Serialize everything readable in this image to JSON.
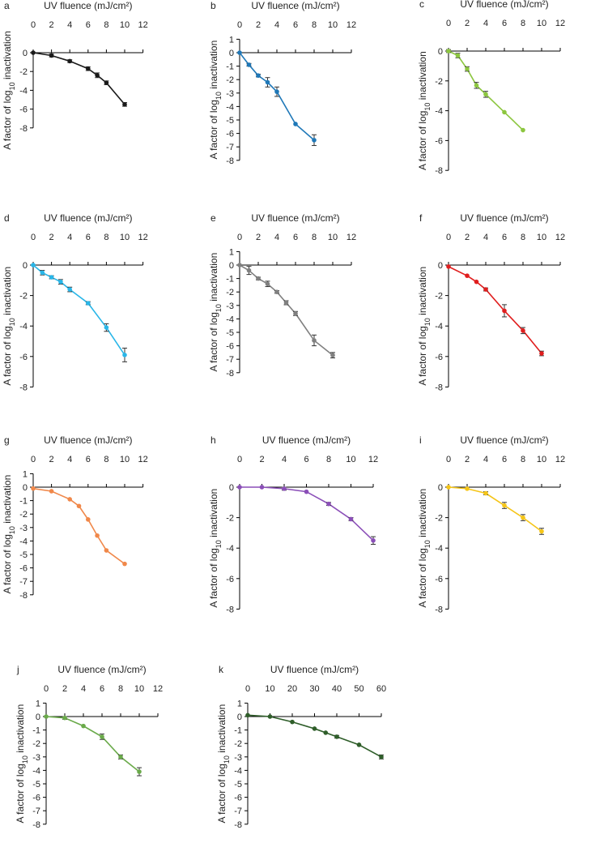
{
  "chart_data": [
    {
      "panel": "a",
      "type": "line",
      "color": "#1a1a1a",
      "title": "UV fluence (mJ/cm²)",
      "xlabel": "UV fluence (mJ/cm²)",
      "ylabel": "A factor of log10 inactivation",
      "xlim": [
        0,
        12
      ],
      "xticks": [
        0,
        2,
        4,
        6,
        8,
        10,
        12
      ],
      "ylim": [
        -8,
        0
      ],
      "yticks": [
        0,
        -2,
        -4,
        -6,
        -8
      ],
      "x": [
        0,
        2,
        4,
        6,
        7,
        8,
        10
      ],
      "y": [
        0,
        -0.3,
        -0.9,
        -1.7,
        -2.4,
        -3.2,
        -5.5
      ],
      "err": [
        0.05,
        0.15,
        0.15,
        0.2,
        0.25,
        0.2,
        0.2
      ]
    },
    {
      "panel": "b",
      "type": "line",
      "color": "#1f78b8",
      "title": "UV fluence (mJ/cm²)",
      "xlabel": "UV fluence (mJ/cm²)",
      "ylabel": "A factor of log10 inactivation",
      "xlim": [
        0,
        12
      ],
      "xticks": [
        0,
        2,
        4,
        6,
        8,
        10,
        12
      ],
      "ylim": [
        -8,
        1
      ],
      "yticks": [
        1,
        0,
        -1,
        -2,
        -3,
        -4,
        -5,
        -6,
        -7,
        -8
      ],
      "x": [
        0,
        1,
        2,
        3,
        4,
        6,
        8
      ],
      "y": [
        0,
        -0.9,
        -1.7,
        -2.2,
        -2.9,
        -5.3,
        -6.5
      ],
      "err": [
        0.05,
        0.1,
        0.1,
        0.35,
        0.35,
        0.05,
        0.4
      ]
    },
    {
      "panel": "c",
      "type": "line",
      "color": "#8cc63f",
      "title": "UV fluence (mJ/cm²)",
      "xlabel": "UV fluence (mJ/cm²)",
      "ylabel": "A factor of log10 inactivation",
      "xlim": [
        0,
        12
      ],
      "xticks": [
        0,
        2,
        4,
        6,
        8,
        10,
        12
      ],
      "ylim": [
        -8,
        0
      ],
      "yticks": [
        0,
        -2,
        -4,
        -6,
        -8
      ],
      "x": [
        0,
        1,
        2,
        3,
        4,
        6,
        8
      ],
      "y": [
        0,
        -0.3,
        -1.2,
        -2.3,
        -2.9,
        -4.1,
        -5.3
      ],
      "err": [
        0.1,
        0.15,
        0.15,
        0.2,
        0.2,
        0.05,
        0.05
      ]
    },
    {
      "panel": "d",
      "type": "line",
      "color": "#29b6e8",
      "title": "UV fluence (mJ/cm²)",
      "xlabel": "UV fluence (mJ/cm²)",
      "ylabel": "A factor of log10 inactivation",
      "xlim": [
        0,
        12
      ],
      "xticks": [
        0,
        2,
        4,
        6,
        8,
        10,
        12
      ],
      "ylim": [
        -8,
        0
      ],
      "yticks": [
        0,
        -2,
        -4,
        -6,
        -8
      ],
      "x": [
        0,
        1,
        2,
        3,
        4,
        6,
        8,
        10
      ],
      "y": [
        0,
        -0.5,
        -0.8,
        -1.1,
        -1.6,
        -2.5,
        -4.1,
        -5.9
      ],
      "err": [
        0.05,
        0.15,
        0.1,
        0.15,
        0.15,
        0.1,
        0.25,
        0.45
      ]
    },
    {
      "panel": "e",
      "type": "line",
      "color": "#808080",
      "title": "UV fluence (mJ/cm²)",
      "xlabel": "UV fluence (mJ/cm²)",
      "ylabel": "A factor of log10 inactivation",
      "xlim": [
        0,
        12
      ],
      "xticks": [
        0,
        2,
        4,
        6,
        8,
        10,
        12
      ],
      "ylim": [
        -8,
        1
      ],
      "yticks": [
        1,
        0,
        -1,
        -2,
        -3,
        -4,
        -5,
        -6,
        -7,
        -8
      ],
      "x": [
        0,
        1,
        2,
        3,
        4,
        5,
        6,
        8,
        10
      ],
      "y": [
        0,
        -0.4,
        -1.0,
        -1.4,
        -2.0,
        -2.8,
        -3.6,
        -5.6,
        -6.7
      ],
      "err": [
        0.05,
        0.3,
        0.1,
        0.2,
        0.1,
        0.15,
        0.15,
        0.4,
        0.2
      ]
    },
    {
      "panel": "f",
      "type": "line",
      "color": "#e01e1e",
      "title": "UV fluence (mJ/cm²)",
      "xlabel": "UV fluence (mJ/cm²)",
      "ylabel": "A factor of log10 inactivation",
      "xlim": [
        0,
        12
      ],
      "xticks": [
        0,
        2,
        4,
        6,
        8,
        10,
        12
      ],
      "ylim": [
        -8,
        0
      ],
      "yticks": [
        0,
        -2,
        -4,
        -6,
        -8
      ],
      "x": [
        0,
        2,
        3,
        4,
        6,
        8,
        10
      ],
      "y": [
        -0.1,
        -0.7,
        -1.1,
        -1.6,
        -3.0,
        -4.3,
        -5.8
      ],
      "err": [
        0.05,
        0.05,
        0.05,
        0.1,
        0.4,
        0.2,
        0.15
      ]
    },
    {
      "panel": "g",
      "type": "line",
      "color": "#f0884a",
      "title": "UV fluence (mJ/cm²)",
      "xlabel": "UV fluence (mJ/cm²)",
      "ylabel": "A factor of log10 inactivation",
      "xlim": [
        0,
        12
      ],
      "xticks": [
        0,
        2,
        4,
        6,
        8,
        10,
        12
      ],
      "ylim": [
        -8,
        1
      ],
      "yticks": [
        1,
        0,
        -1,
        -2,
        -3,
        -4,
        -5,
        -6,
        -7,
        -8
      ],
      "x": [
        0,
        2,
        4,
        5,
        6,
        7,
        8,
        10
      ],
      "y": [
        -0.1,
        -0.3,
        -0.9,
        -1.4,
        -2.4,
        -3.6,
        -4.7,
        -5.7
      ],
      "err": [
        0.05,
        0.05,
        0.05,
        0.05,
        0.05,
        0.05,
        0.05,
        0.05
      ]
    },
    {
      "panel": "h",
      "type": "line",
      "color": "#8b4fb8",
      "title": "UV fluence (mJ/cm²)",
      "xlabel": "UV fluence (mJ/cm²)",
      "ylabel": "A factor of log10 inactivation",
      "xlim": [
        0,
        12
      ],
      "xticks": [
        0,
        2,
        4,
        6,
        8,
        10,
        12
      ],
      "ylim": [
        -8,
        0
      ],
      "yticks": [
        0,
        -2,
        -4,
        -6,
        -8
      ],
      "x": [
        0,
        2,
        4,
        6,
        8,
        10,
        12
      ],
      "y": [
        0,
        0,
        -0.1,
        -0.3,
        -1.1,
        -2.1,
        -3.5
      ],
      "err": [
        0.05,
        0.05,
        0.1,
        0.05,
        0.1,
        0.1,
        0.25
      ]
    },
    {
      "panel": "i",
      "type": "line",
      "color": "#f5c518",
      "title": "UV fluence (mJ/cm²)",
      "xlabel": "UV fluence (mJ/cm²)",
      "ylabel": "A factor of log10 inactivation",
      "xlim": [
        0,
        12
      ],
      "xticks": [
        0,
        2,
        4,
        6,
        8,
        10,
        12
      ],
      "ylim": [
        -8,
        0
      ],
      "yticks": [
        0,
        -2,
        -4,
        -6,
        -8
      ],
      "x": [
        0,
        2,
        4,
        6,
        8,
        10
      ],
      "y": [
        0,
        -0.1,
        -0.4,
        -1.2,
        -2.0,
        -2.9
      ],
      "err": [
        0.05,
        0.05,
        0.1,
        0.2,
        0.2,
        0.2
      ]
    },
    {
      "panel": "j",
      "type": "line",
      "color": "#6aaa4a",
      "title": "UV fluence (mJ/cm²)",
      "xlabel": "UV fluence (mJ/cm²)",
      "ylabel": "A factor of log10 inactivation",
      "xlim": [
        0,
        12
      ],
      "xticks": [
        0,
        2,
        4,
        6,
        8,
        10,
        12
      ],
      "ylim": [
        -8,
        1
      ],
      "yticks": [
        1,
        0,
        -1,
        -2,
        -3,
        -4,
        -5,
        -6,
        -7,
        -8
      ],
      "x": [
        0,
        2,
        4,
        6,
        8,
        10
      ],
      "y": [
        0,
        -0.1,
        -0.7,
        -1.5,
        -3.0,
        -4.1
      ],
      "err": [
        0.05,
        0.1,
        0.05,
        0.2,
        0.15,
        0.3
      ]
    },
    {
      "panel": "k",
      "type": "line",
      "color": "#2f5e2a",
      "title": "UV fluence (mJ/cm²)",
      "xlabel": "UV fluence (mJ/cm²)",
      "ylabel": "A factor of log10 inactivation",
      "xlim": [
        0,
        60
      ],
      "xticks": [
        0,
        10,
        20,
        30,
        40,
        50,
        60
      ],
      "ylim": [
        -8,
        1
      ],
      "yticks": [
        1,
        0,
        -1,
        -2,
        -3,
        -4,
        -5,
        -6,
        -7,
        -8
      ],
      "x": [
        0,
        10,
        20,
        30,
        35,
        40,
        50,
        60
      ],
      "y": [
        0.1,
        0,
        -0.4,
        -0.9,
        -1.2,
        -1.5,
        -2.1,
        -3.0
      ],
      "err": [
        0.05,
        0.05,
        0.05,
        0.05,
        0.05,
        0.1,
        0.05,
        0.15
      ]
    }
  ]
}
